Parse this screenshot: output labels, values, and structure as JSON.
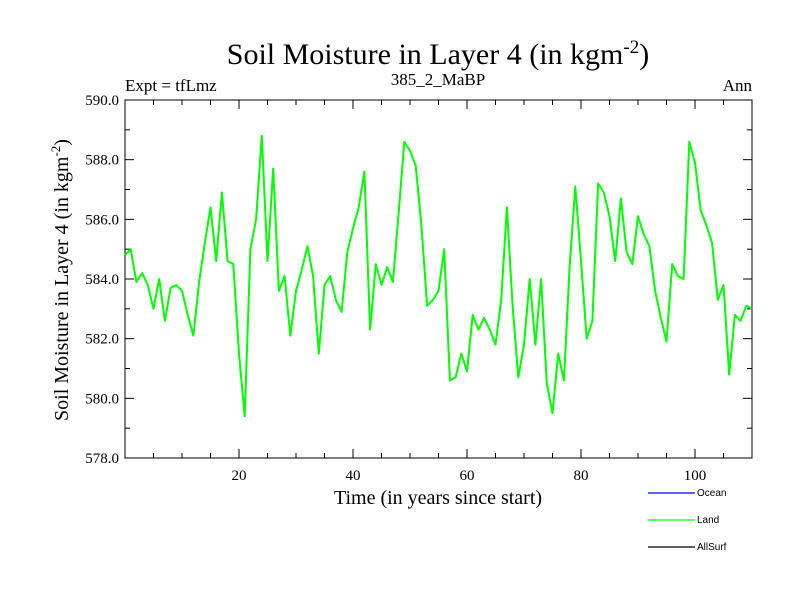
{
  "chart_data": {
    "type": "line",
    "title": "Soil Moisture in Layer 4 (in kgm",
    "title_sup": "-2",
    "title_close": ")",
    "subtitle_left": "Expt = tfLmz",
    "subtitle_center": "385_2_MaBP",
    "subtitle_right": "Ann",
    "xlabel": "Time (in years since start)",
    "ylabel": "Soil Moisture in Layer 4 (in kgm",
    "ylabel_sup": "-2",
    "ylabel_close": ")",
    "xlim": [
      0,
      110
    ],
    "ylim": [
      578,
      590
    ],
    "x_ticks": [
      20,
      40,
      60,
      80,
      100
    ],
    "x_tick_labels": [
      "20",
      "40",
      "60",
      "80",
      "100"
    ],
    "y_ticks": [
      578,
      580,
      582,
      584,
      586,
      588,
      590
    ],
    "y_tick_labels": [
      "578.0",
      "580.0",
      "582.0",
      "584.0",
      "586.0",
      "588.0",
      "590.0"
    ],
    "legend": [
      {
        "name": "Ocean",
        "color": "#0000ff"
      },
      {
        "name": "Land",
        "color": "#00ff00"
      },
      {
        "name": "AllSurf",
        "color": "#000000"
      }
    ],
    "series": [
      {
        "name": "Land",
        "color": "#00ff00",
        "x": [
          0,
          1,
          2,
          3,
          4,
          5,
          6,
          7,
          8,
          9,
          10,
          11,
          12,
          13,
          14,
          15,
          16,
          17,
          18,
          19,
          20,
          21,
          22,
          23,
          24,
          25,
          26,
          27,
          28,
          29,
          30,
          31,
          32,
          33,
          34,
          35,
          36,
          37,
          38,
          39,
          40,
          41,
          42,
          43,
          44,
          45,
          46,
          47,
          48,
          49,
          50,
          51,
          52,
          53,
          54,
          55,
          56,
          57,
          58,
          59,
          60,
          61,
          62,
          63,
          64,
          65,
          66,
          67,
          68,
          69,
          70,
          71,
          72,
          73,
          74,
          75,
          76,
          77,
          78,
          79,
          80,
          81,
          82,
          83,
          84,
          85,
          86,
          87,
          88,
          89,
          90,
          91,
          92,
          93,
          94,
          95,
          96,
          97,
          98,
          99,
          100,
          101,
          102,
          103,
          104,
          105,
          106,
          107,
          108,
          109,
          110
        ],
        "values": [
          584.8,
          585.0,
          583.9,
          584.2,
          583.8,
          583.0,
          584.0,
          582.6,
          583.7,
          583.8,
          583.6,
          582.8,
          582.1,
          583.9,
          585.2,
          586.4,
          584.6,
          586.9,
          584.6,
          584.5,
          581.5,
          579.4,
          585.0,
          586.0,
          588.8,
          584.6,
          587.7,
          583.6,
          584.1,
          582.1,
          583.6,
          584.3,
          585.1,
          584.1,
          581.5,
          583.8,
          584.1,
          583.3,
          582.9,
          584.9,
          585.7,
          586.4,
          587.6,
          582.3,
          584.5,
          583.8,
          584.4,
          583.9,
          586.2,
          588.6,
          588.3,
          587.8,
          585.8,
          583.1,
          583.3,
          583.6,
          585.0,
          580.6,
          580.7,
          581.5,
          580.9,
          582.8,
          582.3,
          582.7,
          582.3,
          581.8,
          583.3,
          586.4,
          583.1,
          580.7,
          581.8,
          584.0,
          581.8,
          584.0,
          580.5,
          579.5,
          581.5,
          580.6,
          584.4,
          587.1,
          584.6,
          582.0,
          582.6,
          587.2,
          586.9,
          586.1,
          584.6,
          586.7,
          584.9,
          584.5,
          586.1,
          585.5,
          585.1,
          583.6,
          582.7,
          581.9,
          584.5,
          584.1,
          584.0,
          588.6,
          587.9,
          586.3,
          585.8,
          585.2,
          583.3,
          583.8,
          580.8,
          582.8,
          582.6,
          583.1,
          583.0
        ]
      }
    ]
  }
}
